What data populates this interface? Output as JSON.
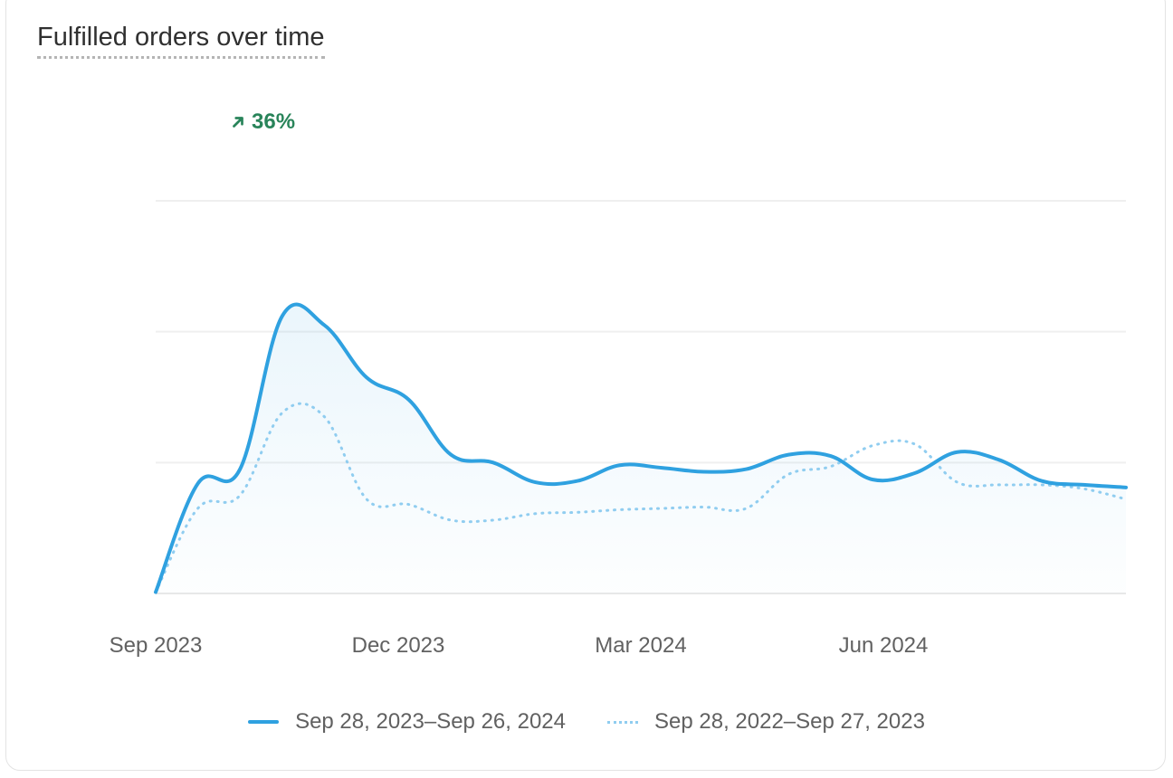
{
  "card": {
    "title": "Fulfilled orders over time",
    "change": {
      "value": "36%",
      "direction": "up",
      "color": "#29845a",
      "icon": "arrow-up-right-icon"
    }
  },
  "chart_data": {
    "type": "line",
    "title": "Fulfilled orders over time",
    "x_ticks": [
      "Sep 2023",
      "Dec 2023",
      "Mar 2024",
      "Jun 2024"
    ],
    "y_ticks_labeled": false,
    "grid": true,
    "legend_position": "bottom",
    "series": [
      {
        "name": "Sep 28, 2023–Sep 26, 2024",
        "style": "solid",
        "color": "#2fa1e0",
        "area_fill": true,
        "values": [
          0.01,
          0.84,
          0.95,
          2.12,
          2.05,
          1.65,
          1.48,
          1.06,
          1.0,
          0.85,
          0.86,
          0.98,
          0.96,
          0.93,
          0.95,
          1.06,
          1.05,
          0.87,
          0.92,
          1.08,
          1.02,
          0.86,
          0.83,
          0.81
        ]
      },
      {
        "name": "Sep 28, 2022–Sep 27, 2023",
        "style": "dotted",
        "color": "#90cdf0",
        "area_fill": false,
        "values": [
          0.01,
          0.65,
          0.75,
          1.38,
          1.35,
          0.72,
          0.68,
          0.56,
          0.56,
          0.61,
          0.62,
          0.64,
          0.65,
          0.66,
          0.65,
          0.91,
          0.97,
          1.13,
          1.14,
          0.85,
          0.83,
          0.83,
          0.8,
          0.72
        ]
      }
    ],
    "ylim": [
      0,
      3
    ]
  }
}
